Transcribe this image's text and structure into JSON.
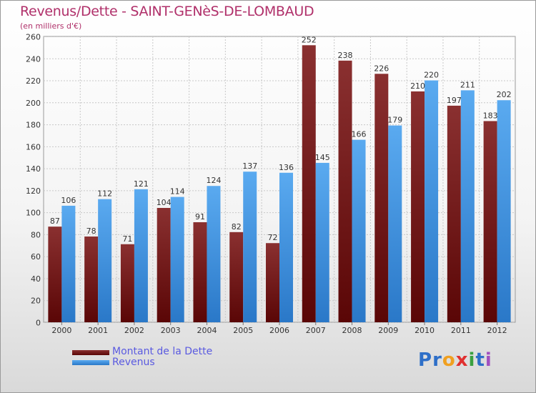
{
  "title": "Revenus/Dette - SAINT-GENèS-DE-LOMBAUD",
  "subtitle": "(en milliers d'€)",
  "logo": {
    "text": "Proxiti",
    "letters": [
      "P",
      "r",
      "o",
      "x",
      "i",
      "t",
      "i"
    ],
    "colors": [
      "#2e6fc8",
      "#2e6fc8",
      "#f0a020",
      "#e03030",
      "#3aa040",
      "#2e6fc8",
      "#a050c0"
    ]
  },
  "chart_data": {
    "type": "bar",
    "title": "Revenus/Dette - SAINT-GENèS-DE-LOMBAUD",
    "ylabel": "(en milliers d'€)",
    "categories": [
      "2000",
      "2001",
      "2002",
      "2003",
      "2004",
      "2005",
      "2006",
      "2007",
      "2008",
      "2009",
      "2010",
      "2011",
      "2012"
    ],
    "series": [
      {
        "name": "Montant de la Dette",
        "color": "#7a1a1a",
        "values": [
          87,
          78,
          71,
          104,
          91,
          82,
          72,
          252,
          238,
          226,
          210,
          197,
          183
        ]
      },
      {
        "name": "Revenus",
        "color": "#3b8fd9",
        "values": [
          106,
          112,
          121,
          114,
          124,
          137,
          136,
          145,
          166,
          179,
          220,
          211,
          202
        ]
      }
    ],
    "ylim": [
      0,
      260
    ],
    "yticks": [
      0,
      20,
      40,
      60,
      80,
      100,
      120,
      140,
      160,
      180,
      200,
      220,
      240,
      260
    ],
    "grid": true,
    "legend": "bottom-left"
  }
}
